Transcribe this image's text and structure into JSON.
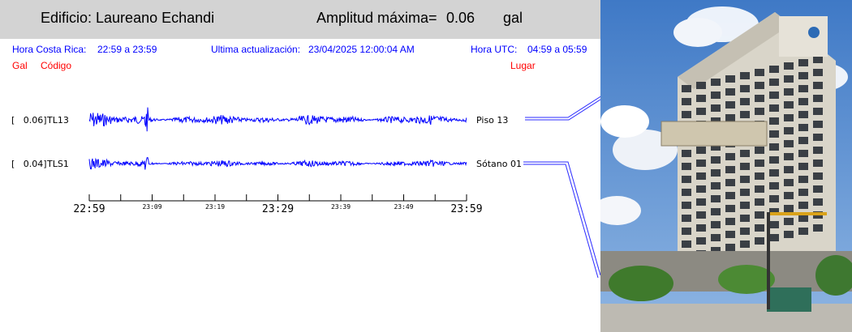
{
  "header": {
    "building": "Edificio: Laureano Echandi",
    "amp_label": "Amplitud máxima=",
    "amp_value": "0.06",
    "amp_unit": "gal",
    "bg_color": "#d3d3d3"
  },
  "info": {
    "local_label": "Hora Costa Rica:",
    "local_range": "22:59 a 23:59",
    "update_label": "Ultima actualización:",
    "update_value": "23/04/2025 12:00:04 AM",
    "utc_label": "Hora UTC:",
    "utc_range": "04:59 a 05:59"
  },
  "columns": {
    "gal": "Gal",
    "code": "Código",
    "place": "Lugar"
  },
  "chart_data": {
    "type": "line",
    "x_start": "22:59",
    "x_end": "23:59",
    "major_ticks": [
      "22:59",
      "23:29",
      "23:59"
    ],
    "minor_ticks": [
      "23:09",
      "23:19",
      "23:39",
      "23:49"
    ],
    "trace_color": "#0000ff",
    "series": [
      {
        "bracket_label": "[   0.06]",
        "code": "TL13",
        "place": "Piso 13",
        "max_gal": 0.06
      },
      {
        "bracket_label": "[   0.04]",
        "code": "TLS1",
        "place": "Sótano 01",
        "max_gal": 0.04
      }
    ]
  },
  "photo": {
    "sky_color": "#5b8fcf",
    "building_color": "#d8d4c8"
  }
}
